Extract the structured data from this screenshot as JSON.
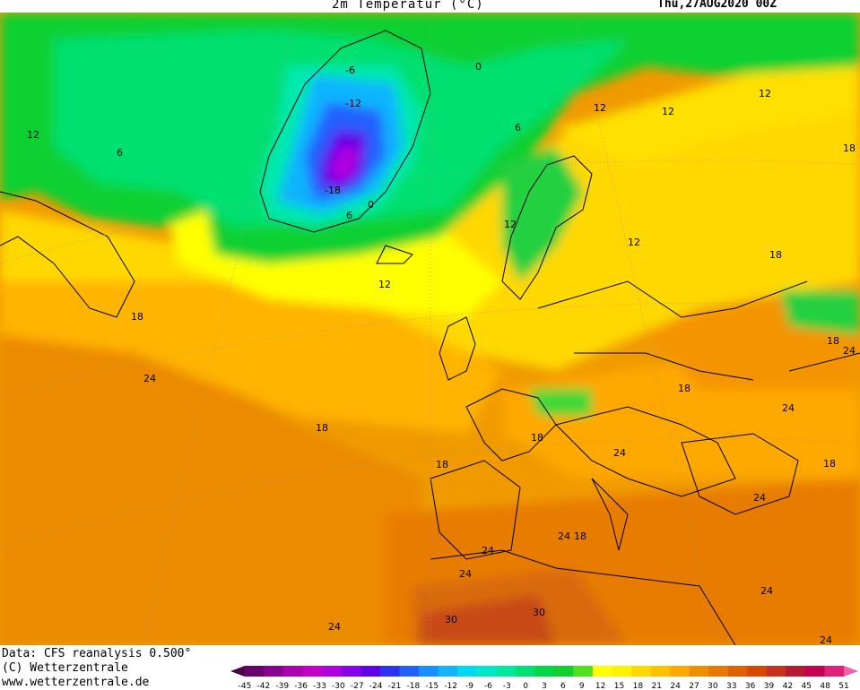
{
  "header": {
    "title": "2m Temperatur (°C)",
    "date": "Thu,27AUG2020 00Z"
  },
  "footer": {
    "data_source": "Data: CFS reanalysis 0.500°",
    "copyright": "(C) Wetterzentrale",
    "website": "www.wetterzentrale.de"
  },
  "colorbar": {
    "ticks": [
      "-45",
      "-42",
      "-39",
      "-36",
      "-33",
      "-30",
      "-27",
      "-24",
      "-21",
      "-18",
      "-15",
      "-12",
      "-9",
      "-6",
      "-3",
      "0",
      "3",
      "6",
      "9",
      "12",
      "15",
      "18",
      "21",
      "24",
      "27",
      "30",
      "33",
      "36",
      "39",
      "42",
      "45",
      "48",
      "51"
    ],
    "colors": [
      "#4b0048",
      "#6a0070",
      "#8a0090",
      "#aa00b0",
      "#c400c8",
      "#b000e0",
      "#8a00e8",
      "#6000e8",
      "#3030f0",
      "#2060ff",
      "#1890ff",
      "#10b4ff",
      "#00d8f0",
      "#00e8c8",
      "#00e8a0",
      "#00e070",
      "#00d848",
      "#10d030",
      "#50e020",
      "#ffff00",
      "#fff000",
      "#ffd800",
      "#ffc000",
      "#ffa800",
      "#f09000",
      "#e87800",
      "#e06000",
      "#d84800",
      "#c83020",
      "#b81830",
      "#c80050",
      "#e0207a",
      "#f060b0"
    ]
  },
  "map": {
    "contour_labels": [
      {
        "text": "12",
        "pos": "west Canada"
      },
      {
        "text": "6",
        "pos": "Baffin"
      },
      {
        "text": "-6",
        "pos": "Greenland north"
      },
      {
        "text": "-12",
        "pos": "Greenland center"
      },
      {
        "text": "-18",
        "pos": "Greenland south"
      },
      {
        "text": "0",
        "pos": "Greenland coast east"
      },
      {
        "text": "6",
        "pos": "Greenland coast south"
      },
      {
        "text": "0",
        "pos": "Svalbard area"
      },
      {
        "text": "6",
        "pos": "Norwegian Sea"
      },
      {
        "text": "12",
        "pos": "Barents"
      },
      {
        "text": "12",
        "pos": "Siberia north"
      },
      {
        "text": "18",
        "pos": "Urals east"
      },
      {
        "text": "12",
        "pos": "Russia west"
      },
      {
        "text": "12",
        "pos": "Baltic"
      },
      {
        "text": "12",
        "pos": "Norway south"
      },
      {
        "text": "18",
        "pos": "Russia south"
      },
      {
        "text": "12",
        "pos": "North Atlantic"
      },
      {
        "text": "18",
        "pos": "Newfoundland"
      },
      {
        "text": "24",
        "pos": "Central Atlantic"
      },
      {
        "text": "18",
        "pos": "Mid Atlantic"
      },
      {
        "text": "18",
        "pos": "France west"
      },
      {
        "text": "18",
        "pos": "Iberia north"
      },
      {
        "text": "18",
        "pos": "Alps"
      },
      {
        "text": "24",
        "pos": "Italy"
      },
      {
        "text": "24",
        "pos": "Black Sea"
      },
      {
        "text": "18",
        "pos": "Caspian"
      },
      {
        "text": "24",
        "pos": "Kazakhstan"
      },
      {
        "text": "18",
        "pos": "Caucasus"
      },
      {
        "text": "24",
        "pos": "Turkey"
      },
      {
        "text": "24",
        "pos": "Mediterranean"
      },
      {
        "text": "18",
        "pos": "Algeria coast"
      },
      {
        "text": "24",
        "pos": "Morocco"
      },
      {
        "text": "24",
        "pos": "Atlas"
      },
      {
        "text": "30",
        "pos": "Sahara west"
      },
      {
        "text": "30",
        "pos": "Sahara"
      },
      {
        "text": "24",
        "pos": "Libya"
      },
      {
        "text": "24",
        "pos": "Arabia"
      },
      {
        "text": "24",
        "pos": "Canary"
      }
    ]
  }
}
